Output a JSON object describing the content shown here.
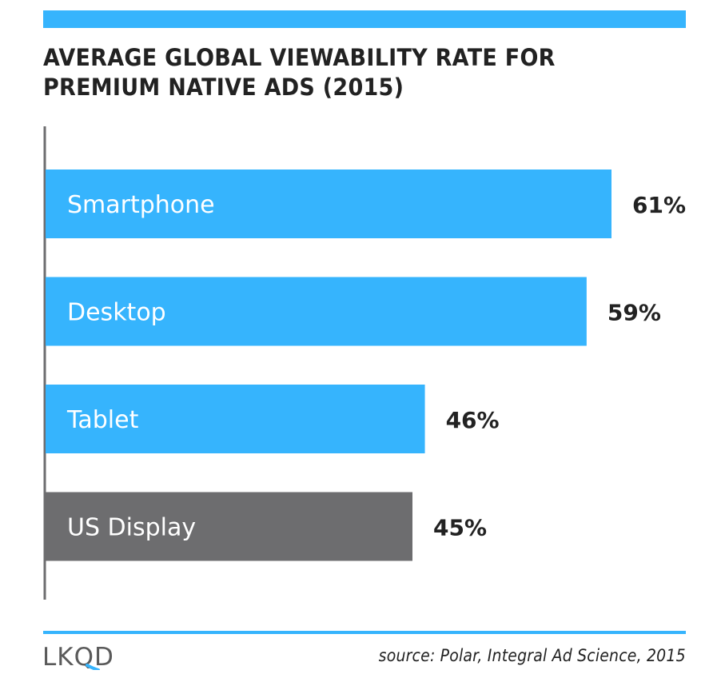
{
  "header": {
    "title_line1": "AVERAGE GLOBAL VIEWABILITY RATE FOR",
    "title_line2": "PREMIUM NATIVE ADS (2015)"
  },
  "colors": {
    "accent": "#36b4fd",
    "comparison_bar": "#6d6d6f",
    "text_dark": "#222222",
    "axis": "#6d6d6f"
  },
  "chart_data": {
    "type": "bar",
    "orientation": "horizontal",
    "title": "AVERAGE GLOBAL VIEWABILITY RATE FOR PREMIUM NATIVE ADS (2015)",
    "categories": [
      "Smartphone",
      "Desktop",
      "Tablet",
      "US Display"
    ],
    "values": [
      61,
      59,
      46,
      45
    ],
    "value_labels": [
      "61%",
      "59%",
      "46%",
      "45%"
    ],
    "unit": "%",
    "bar_colors": [
      "#36b4fd",
      "#36b4fd",
      "#36b4fd",
      "#6d6d6f"
    ],
    "xlabel": "",
    "ylabel": "",
    "grid": false,
    "legend": "none"
  },
  "footer": {
    "logo_text": "LKQD",
    "source": "source: Polar, Integral Ad Science, 2015"
  }
}
